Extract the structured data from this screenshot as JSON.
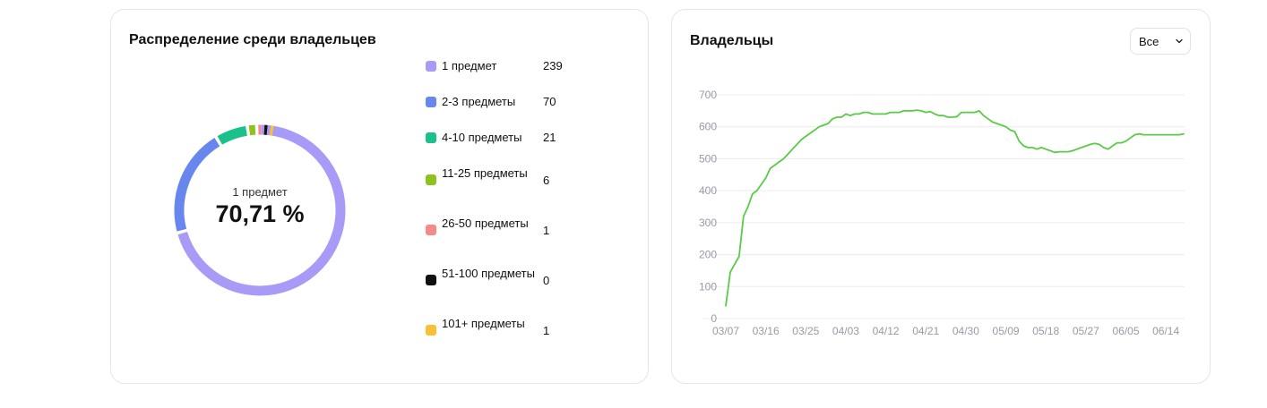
{
  "distribution": {
    "title": "Распределение среди владельцев",
    "center_caption": "1 предмет",
    "center_percent": "70,71 %",
    "legend": [
      {
        "label": "1 предмет",
        "value": "239",
        "color": "#a89bf8"
      },
      {
        "label": "2-3 предметы",
        "value": "70",
        "color": "#6787ef"
      },
      {
        "label": "4-10 предметы",
        "value": "21",
        "color": "#1cc08d"
      },
      {
        "label": "11-25 предметы",
        "value": "6",
        "color": "#8ec21c"
      },
      {
        "label": "26-50 предметы",
        "value": "1",
        "color": "#f58a88"
      },
      {
        "label": "51-100 предметы",
        "value": "0",
        "color": "#111111"
      },
      {
        "label": "101+ предметы",
        "value": "1",
        "color": "#fbbe34"
      }
    ]
  },
  "owners": {
    "title": "Владельцы",
    "period_select": {
      "value": "Все",
      "icon": "chevron-down-icon"
    }
  },
  "chart_data": [
    {
      "type": "pie",
      "donut": true,
      "categories": [
        "1 предмет",
        "2-3 предметы",
        "4-10 предметы",
        "11-25 предметы",
        "26-50 предметы",
        "51-100 предметы",
        "101+ предметы"
      ],
      "values": [
        239,
        70,
        21,
        6,
        1,
        0,
        1
      ],
      "colors": [
        "#a89bf8",
        "#6787ef",
        "#1cc08d",
        "#8ec21c",
        "#f58a88",
        "#111111",
        "#fbbe34"
      ]
    },
    {
      "type": "line",
      "title": "Владельцы",
      "x_tick_labels": [
        "03/07",
        "03/16",
        "03/25",
        "04/03",
        "04/12",
        "04/21",
        "04/30",
        "05/09",
        "05/18",
        "05/27",
        "06/05",
        "06/14"
      ],
      "y_ticks": [
        0,
        100,
        200,
        300,
        400,
        500,
        600,
        700
      ],
      "ylim": [
        0,
        700
      ],
      "xlim": [
        "03/07",
        "06/18"
      ],
      "grid": true,
      "color": "#5acb46",
      "series": [
        {
          "x": [
            "03/07",
            "03/08",
            "03/09",
            "03/10",
            "03/11",
            "03/12",
            "03/13",
            "03/14",
            "03/15",
            "03/16",
            "03/17",
            "03/18",
            "03/19",
            "03/20",
            "03/21",
            "03/22",
            "03/23",
            "03/24",
            "03/25",
            "03/26",
            "03/27",
            "03/28",
            "03/29",
            "03/30",
            "03/31",
            "04/01",
            "04/02",
            "04/03",
            "04/04",
            "04/05",
            "04/06",
            "04/07",
            "04/08",
            "04/09",
            "04/10",
            "04/11",
            "04/12",
            "04/13",
            "04/14",
            "04/15",
            "04/16",
            "04/17",
            "04/18",
            "04/19",
            "04/20",
            "04/21",
            "04/22",
            "04/23",
            "04/24",
            "04/25",
            "04/26",
            "04/27",
            "04/28",
            "04/29",
            "04/30",
            "05/01",
            "05/02",
            "05/03",
            "05/04",
            "05/05",
            "05/06",
            "05/07",
            "05/08",
            "05/09",
            "05/10",
            "05/11",
            "05/12",
            "05/13",
            "05/14",
            "05/15",
            "05/16",
            "05/17",
            "05/18",
            "05/19",
            "05/20",
            "05/21",
            "05/22",
            "05/23",
            "05/24",
            "05/25",
            "05/26",
            "05/27",
            "05/28",
            "05/29",
            "05/30",
            "05/31",
            "06/01",
            "06/02",
            "06/03",
            "06/04",
            "06/05",
            "06/06",
            "06/07",
            "06/08",
            "06/09",
            "06/10",
            "06/11",
            "06/12",
            "06/13",
            "06/14",
            "06/15",
            "06/16",
            "06/17",
            "06/18"
          ],
          "values": [
            40,
            145,
            170,
            195,
            320,
            350,
            390,
            400,
            420,
            440,
            470,
            480,
            490,
            500,
            515,
            530,
            545,
            560,
            570,
            580,
            590,
            600,
            605,
            610,
            625,
            630,
            630,
            640,
            635,
            640,
            640,
            645,
            645,
            640,
            640,
            640,
            640,
            645,
            645,
            645,
            650,
            650,
            650,
            652,
            650,
            645,
            648,
            640,
            635,
            635,
            630,
            630,
            632,
            645,
            645,
            645,
            645,
            650,
            635,
            625,
            615,
            610,
            605,
            600,
            590,
            585,
            555,
            540,
            535,
            535,
            530,
            535,
            530,
            525,
            520,
            522,
            522,
            522,
            525,
            530,
            535,
            540,
            545,
            548,
            545,
            535,
            530,
            540,
            550,
            550,
            555,
            565,
            575,
            578,
            575,
            575,
            575,
            575,
            575,
            575,
            575,
            575,
            575,
            578
          ]
        }
      ]
    }
  ]
}
